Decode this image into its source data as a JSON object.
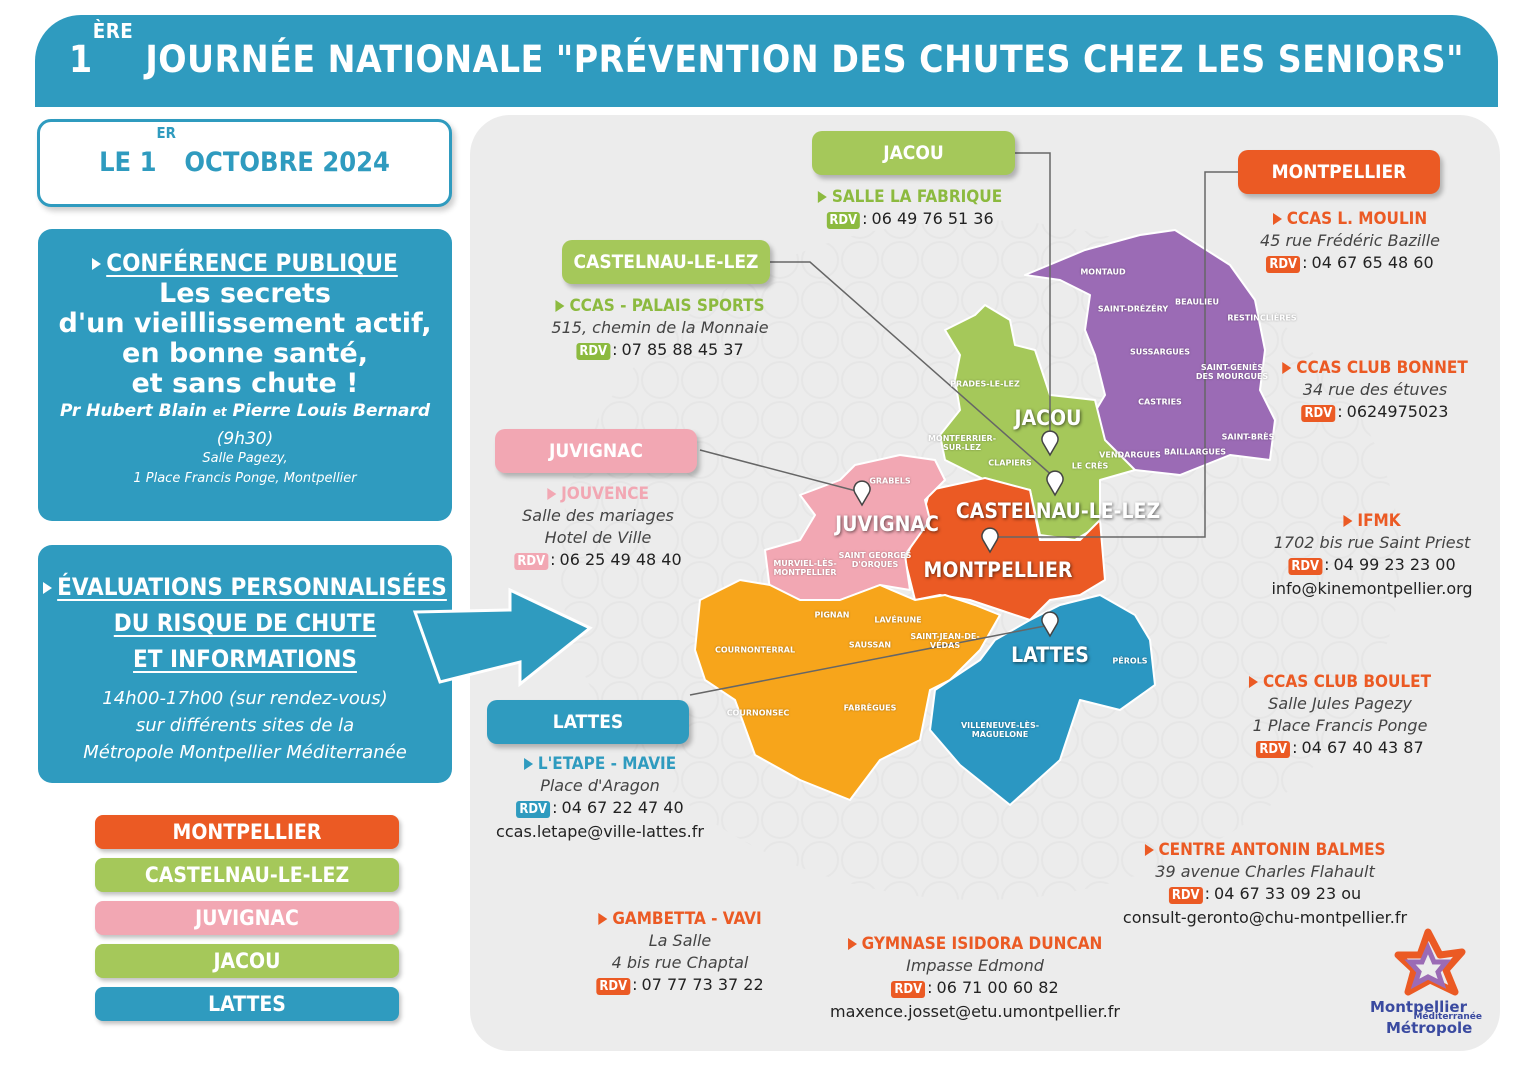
{
  "header": {
    "title_number": "1",
    "title_sup": "ÈRE",
    "title_rest": " JOURNÉE NATIONALE \"PRÉVENTION DES CHUTES CHEZ LES SENIORS\""
  },
  "date": {
    "prefix": "LE 1",
    "sup": "ER",
    "rest": " OCTOBRE 2024"
  },
  "conference": {
    "heading": "CONFÉRENCE PUBLIQUE",
    "lines": [
      "Les secrets",
      "d'un vieillissement actif,",
      "en bonne santé,",
      "et sans chute !"
    ],
    "speaker1": "Pr Hubert Blain",
    "and": "et",
    "speaker2": "Pierre Louis Bernard",
    "time": "(9h30)",
    "place": [
      "Salle Pagezy,",
      "1 Place Francis Ponge, Montpellier"
    ]
  },
  "evaluations": {
    "heading": [
      "ÉVALUATIONS PERSONNALISÉES",
      "DU RISQUE DE CHUTE",
      "ET INFORMATIONS"
    ],
    "details": [
      "14h00-17h00 (sur rendez-vous)",
      "sur différents sites de la",
      "Métropole Montpellier Méditerranée"
    ]
  },
  "legend": [
    {
      "name": "MONTPELLIER",
      "color": "#eb5a24"
    },
    {
      "name": "CASTELNAU-LE-LEZ",
      "color": "#a5c85a"
    },
    {
      "name": "JUVIGNAC",
      "color": "#f2a7b3"
    },
    {
      "name": "JACOU",
      "color": "#a5c85a"
    },
    {
      "name": "LATTES",
      "color": "#2f9bbf"
    }
  ],
  "cities": [
    {
      "name": "JACOU",
      "color": "#a5c85a"
    },
    {
      "name": "CASTELNAU-LE-LEZ",
      "color": "#a5c85a"
    },
    {
      "name": "JUVIGNAC",
      "color": "#f2a7b3"
    },
    {
      "name": "LATTES",
      "color": "#2f9bbf"
    },
    {
      "name": "MONTPELLIER",
      "color": "#eb5a24"
    }
  ],
  "rdv_label": "RDV",
  "rdv_separator": ":",
  "sites": [
    {
      "name": "SALLE LA FABRIQUE",
      "lines": [],
      "phone": "06 49 76 51 36",
      "extra": [],
      "color": "#8cba3f"
    },
    {
      "name": "CCAS - PALAIS SPORTS",
      "lines": [
        "515, chemin de la Monnaie"
      ],
      "phone": "07 85 88 45 37",
      "extra": [],
      "color": "#8cba3f"
    },
    {
      "name": "JOUVENCE",
      "lines": [
        "Salle des mariages",
        "Hotel de Ville"
      ],
      "phone": "06 25 49 48 40",
      "extra": [],
      "color": "#f2a7b3"
    },
    {
      "name": "L'ETAPE - MAVIE",
      "lines": [
        "Place d'Aragon"
      ],
      "phone": "04 67 22 47 40",
      "extra": [
        "ccas.letape@ville-lattes.fr"
      ],
      "color": "#2f9bbf"
    },
    {
      "name": "CCAS L. MOULIN",
      "lines": [
        "45 rue Frédéric Bazille"
      ],
      "phone": "04 67 65 48 60",
      "extra": [],
      "color": "#eb5a24"
    },
    {
      "name": "CCAS CLUB BONNET",
      "lines": [
        "34 rue des étuves"
      ],
      "phone": "0624975023",
      "extra": [],
      "color": "#eb5a24"
    },
    {
      "name": "IFMK",
      "lines": [
        "1702 bis rue Saint Priest"
      ],
      "phone": "04 99 23 23 00",
      "extra": [
        "info@kinemontpellier.org"
      ],
      "color": "#eb5a24"
    },
    {
      "name": "CCAS CLUB BOULET",
      "lines": [
        "Salle Jules Pagezy",
        "1 Place Francis Ponge"
      ],
      "phone": "04 67 40 43 87",
      "extra": [],
      "color": "#eb5a24"
    },
    {
      "name": "CENTRE ANTONIN BALMES",
      "lines": [
        "39 avenue Charles Flahault"
      ],
      "phone": "04 67 33 09 23 ou",
      "extra": [
        "consult-geronto@chu-montpellier.fr"
      ],
      "color": "#eb5a24"
    },
    {
      "name": "GAMBETTA - VAVI",
      "lines": [
        "La Salle",
        "4 bis rue Chaptal"
      ],
      "phone": "07 77 73 37 22",
      "extra": [],
      "color": "#eb5a24"
    },
    {
      "name": "GYMNASE ISIDORA DUNCAN",
      "lines": [
        "Impasse Edmond"
      ],
      "phone": "06 71 00 60 82",
      "extra": [
        "maxence.josset@etu.umontpellier.fr"
      ],
      "color": "#eb5a24"
    }
  ],
  "map": {
    "communes": [
      "MONTAUD",
      "SAINT-DRÉZÉRY",
      "BEAULIEU",
      "RESTINCLIÈRES",
      "SUSSARGUES",
      "SAINT-GENIÈS DES MOURGUES",
      "CASTRIES",
      "SAINT-BRÈS",
      "VENDARGUES",
      "BAILLARGUES",
      "LE CRÈS",
      "CLAPIERS",
      "MONTFERRIER-SUR-LEZ",
      "PRADES-LE-LEZ",
      "GRABELS",
      "SAINT GEORGES D'ORQUES",
      "MURVIEL-LÈS-MONTPELLIER",
      "PIGNAN",
      "LAVÉRUNE",
      "SAUSSAN",
      "SAINT-JEAN-DE-VÉDAS",
      "COURNONTERRAL",
      "COURNONSEC",
      "FABRÈGUES",
      "PÉROLS",
      "VILLENEUVE-LÈS-MAGUELONE"
    ],
    "big_labels": [
      "JACOU",
      "CASTELNAU-LE-LEZ",
      "JUVIGNAC",
      "MONTPELLIER",
      "LATTES"
    ]
  },
  "logo": {
    "line1": "Montpellier",
    "line2": "Méditerranée",
    "line3": "Métropole"
  }
}
